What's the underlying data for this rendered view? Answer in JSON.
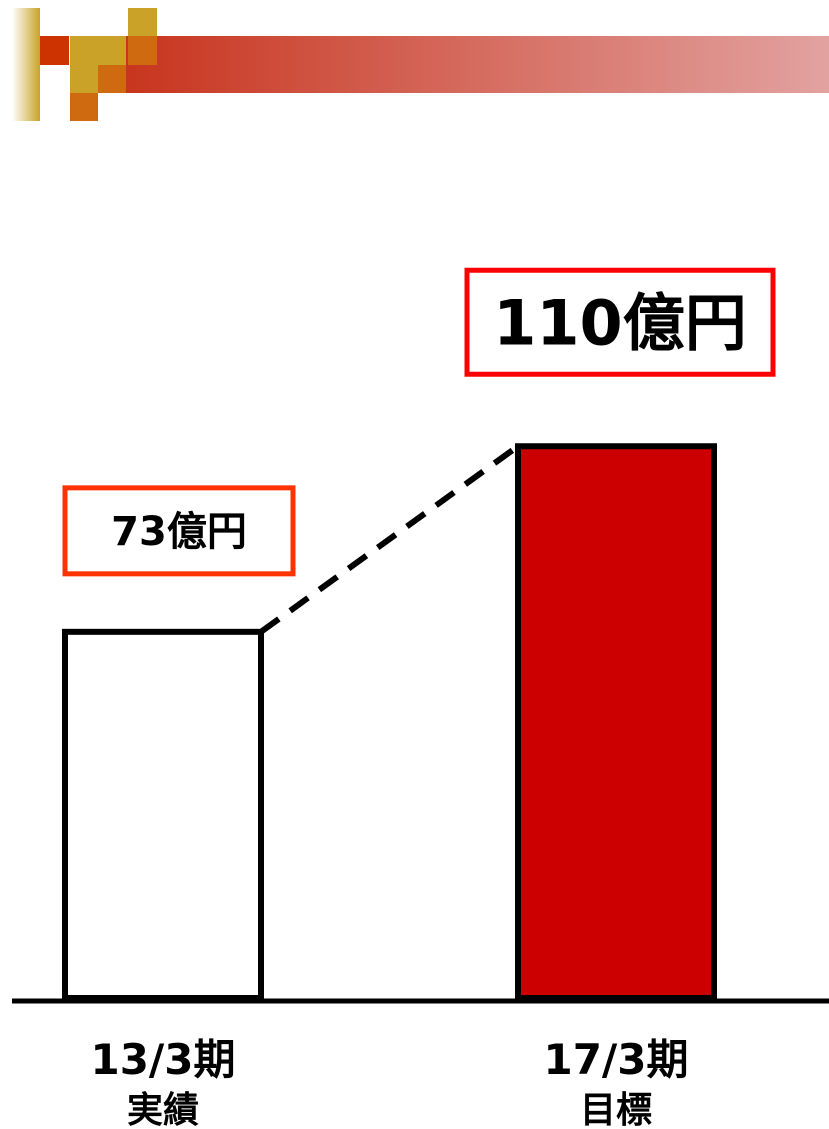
{
  "colors": {
    "header_gradient_start": "#c8351e",
    "header_gradient_end": "#e2a2a0",
    "deco_gold": "#c9a227",
    "deco_orange": "#d06a10",
    "deco_red": "#cc3300",
    "bar_actual_fill": "#ffffff",
    "bar_target_fill": "#cc0000",
    "callout_actual_border": "#ff3300",
    "callout_target_border": "#ff0000"
  },
  "chart_data": {
    "type": "bar",
    "categories": [
      "13/3期",
      "17/3期"
    ],
    "category_sublabels": [
      "実績",
      "目標"
    ],
    "values": [
      73,
      110
    ],
    "value_labels": [
      "73億円",
      "110億円"
    ],
    "unit": "億円",
    "ylim": [
      0,
      125
    ],
    "grid": false,
    "connector": "dashed line from top of first bar to top of second bar"
  }
}
